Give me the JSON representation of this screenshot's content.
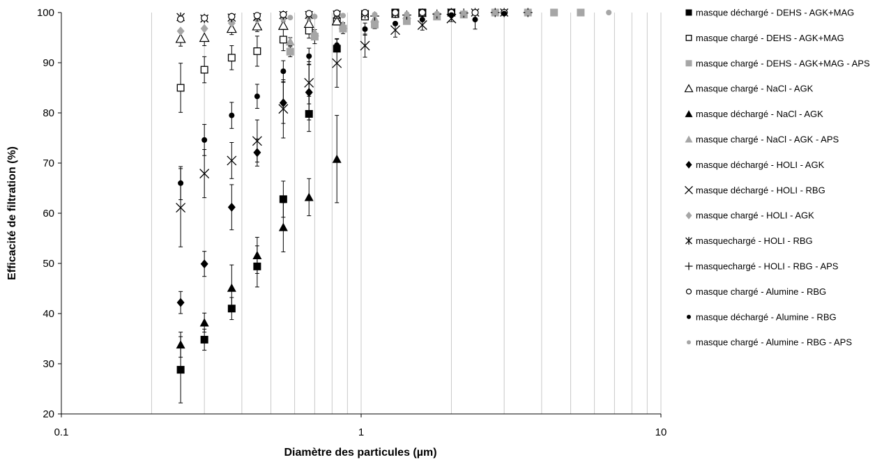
{
  "chart_data": {
    "type": "scatter",
    "xscale": "log",
    "xlim": [
      0.1,
      10
    ],
    "ylim": [
      20,
      100
    ],
    "xlabel": "Diamètre des particules (µm)",
    "ylabel": "Efficacité de filtration (%)",
    "x_ticks": [
      "0.1",
      "1",
      "10"
    ],
    "y_ticks": [
      "20",
      "30",
      "40",
      "50",
      "60",
      "70",
      "80",
      "90",
      "100"
    ],
    "grid": "vertical minor gridlines",
    "legend_position": "right",
    "series": [
      {
        "name": "masque déchargé - DEHS - AGK+MAG",
        "marker": "square-filled",
        "color": "#000000",
        "x": [
          0.25,
          0.3,
          0.37,
          0.45,
          0.55,
          0.67,
          0.83,
          1.03,
          1.3,
          1.6,
          2.0
        ],
        "y": [
          28.8,
          34.8,
          41.0,
          49.4,
          62.8,
          79.8,
          92.8,
          99.5,
          100,
          100,
          100
        ],
        "err": [
          6.6,
          2.1,
          2.2,
          4.1,
          3.6,
          3.5,
          0,
          0,
          0,
          0,
          0
        ]
      },
      {
        "name": "masque chargé - DEHS - AGK+MAG",
        "marker": "square-open",
        "color": "#000000",
        "x": [
          0.25,
          0.3,
          0.37,
          0.45,
          0.55,
          0.67,
          0.83,
          1.03,
          1.3,
          1.6,
          2.0
        ],
        "y": [
          85.0,
          88.6,
          91.0,
          92.3,
          94.6,
          96.4,
          98.2,
          99.2,
          99.7,
          99.9,
          100
        ],
        "err": [
          4.9,
          2.6,
          2.4,
          3.0,
          2.2,
          1.5,
          0,
          0,
          0,
          0,
          0
        ]
      },
      {
        "name": "masque chargé - DEHS - AGK+MAG - APS",
        "marker": "square-filled",
        "color": "#a6a6a6",
        "x": [
          0.58,
          0.7,
          0.87,
          1.11,
          1.42,
          1.79,
          2.2,
          2.8,
          3.6,
          4.4,
          5.4
        ],
        "y": [
          92.2,
          95.2,
          96.8,
          97.6,
          98.3,
          99.2,
          99.6,
          100,
          100,
          100,
          100
        ],
        "err": [
          1.0,
          1.4,
          1.0,
          0.8,
          0.5,
          0,
          0,
          0,
          0,
          0,
          0
        ]
      },
      {
        "name": "masque chargé - NaCl - AGK",
        "marker": "triangle-open",
        "color": "#000000",
        "x": [
          0.25,
          0.3,
          0.37,
          0.45,
          0.55,
          0.67,
          0.83
        ],
        "y": [
          94.8,
          95.0,
          96.8,
          97.3,
          97.4,
          97.8,
          98.3
        ],
        "err": [
          1.5,
          1.6,
          1.2,
          1.1,
          0.8,
          0.7,
          0
        ]
      },
      {
        "name": "masque déchargé - NaCl - AGK",
        "marker": "triangle-filled",
        "color": "#000000",
        "x": [
          0.25,
          0.3,
          0.37,
          0.45,
          0.55,
          0.67,
          0.83
        ],
        "y": [
          33.8,
          38.2,
          45.1,
          51.6,
          57.2,
          63.2,
          70.8
        ],
        "err": [
          2.5,
          1.9,
          4.6,
          3.6,
          4.9,
          3.7,
          8.7
        ]
      },
      {
        "name": "masque chargé - NaCl - AGK - APS",
        "marker": "triangle-filled",
        "color": "#a6a6a6",
        "x": [
          0.58,
          0.7,
          0.87,
          1.11,
          1.42
        ],
        "y": [
          94.2,
          96.0,
          97.5,
          98.8,
          99.5
        ],
        "err": [
          0.8,
          0.6,
          0.5,
          0,
          0
        ]
      },
      {
        "name": "masque déchargé - HOLI - AGK",
        "marker": "diamond-filled",
        "color": "#000000",
        "x": [
          0.25,
          0.3,
          0.37,
          0.45,
          0.55,
          0.67,
          0.83
        ],
        "y": [
          42.2,
          49.9,
          61.2,
          72.1,
          82.0,
          84.1,
          93.2
        ],
        "err": [
          2.2,
          2.5,
          4.5,
          2.7,
          4.1,
          5.5,
          0
        ]
      },
      {
        "name": "masque déchargé - HOLI - RBG",
        "marker": "x",
        "color": "#000000",
        "x": [
          0.25,
          0.3,
          0.37,
          0.45,
          0.55,
          0.67,
          0.83,
          1.03,
          1.3,
          1.6,
          2.0
        ],
        "y": [
          61.1,
          67.9,
          70.5,
          74.4,
          80.8,
          86.0,
          89.9,
          93.4,
          96.5,
          97.5,
          98.8
        ],
        "err": [
          7.8,
          4.8,
          3.6,
          4.2,
          5.8,
          4.2,
          4.8,
          2.3,
          1.4,
          1.0,
          0.6
        ]
      },
      {
        "name": "masque chargé - HOLI - AGK",
        "marker": "diamond-filled",
        "color": "#a6a6a6",
        "x": [
          0.25,
          0.3,
          0.37,
          0.45,
          0.55,
          0.67,
          0.83
        ],
        "y": [
          96.3,
          96.8,
          97.9,
          98.6,
          98.8,
          99.1,
          99.5
        ],
        "err": [
          0,
          0,
          0,
          0,
          0,
          0,
          0
        ]
      },
      {
        "name": "masquechargé - HOLI - RBG",
        "marker": "asterisk",
        "color": "#000000",
        "x": [
          0.25,
          0.3,
          0.37,
          0.45,
          0.55,
          0.67,
          0.83,
          1.03,
          1.3,
          1.6,
          2.0,
          2.4,
          3.0
        ],
        "y": [
          99.1,
          98.8,
          99.0,
          99.1,
          99.5,
          99.5,
          99.6,
          99.7,
          99.8,
          99.9,
          100,
          100,
          100
        ],
        "err": [
          0,
          0,
          0,
          0,
          0,
          0,
          0,
          0,
          0,
          0,
          0,
          0,
          0
        ]
      },
      {
        "name": "masquechargé - HOLI - RBG - APS",
        "marker": "plus",
        "color": "#000000",
        "x": [
          1.11,
          1.42,
          1.79,
          2.2,
          2.8,
          3.6
        ],
        "y": [
          99.3,
          99.5,
          99.7,
          99.9,
          100,
          100
        ],
        "err": [
          0,
          0,
          0,
          0,
          0,
          0
        ]
      },
      {
        "name": "masque chargé - Alumine - RBG",
        "marker": "circle-open",
        "color": "#000000",
        "x": [
          0.25,
          0.3,
          0.37,
          0.45,
          0.55,
          0.67,
          0.83,
          1.03,
          1.3,
          1.6,
          2.0,
          2.4,
          3.0
        ],
        "y": [
          98.7,
          98.9,
          99.2,
          99.4,
          99.6,
          99.8,
          99.9,
          100,
          100,
          100,
          100,
          100,
          100
        ],
        "err": [
          0,
          0,
          0,
          0,
          0,
          0,
          0,
          0,
          0,
          0,
          0,
          0,
          0
        ]
      },
      {
        "name": "masque déchargé - Alumine - RBG",
        "marker": "circle-filled",
        "color": "#000000",
        "x": [
          0.25,
          0.3,
          0.37,
          0.45,
          0.55,
          0.67,
          0.83,
          1.03,
          1.3,
          1.6,
          2.0,
          2.4,
          3.0
        ],
        "y": [
          66.0,
          74.6,
          79.5,
          83.3,
          88.3,
          91.3,
          93.5,
          96.7,
          97.8,
          98.6,
          99.5,
          98.6,
          99.8
        ],
        "err": [
          3.3,
          3.1,
          2.6,
          2.4,
          2.1,
          1.6,
          1.3,
          1.2,
          0,
          0,
          0,
          1.9,
          0
        ]
      },
      {
        "name": "masque chargé - Alumine - RBG - APS",
        "marker": "circle-filled",
        "color": "#a6a6a6",
        "x": [
          0.58,
          0.7,
          0.87,
          1.11,
          1.42,
          1.79,
          2.2,
          2.8,
          3.6,
          4.4,
          5.4,
          6.7
        ],
        "y": [
          99.0,
          99.2,
          99.4,
          99.6,
          99.7,
          99.8,
          99.9,
          100,
          100,
          100,
          100,
          100
        ],
        "err": [
          0,
          0,
          0,
          0,
          0,
          0,
          0,
          0,
          0,
          0,
          0,
          0
        ]
      }
    ]
  }
}
